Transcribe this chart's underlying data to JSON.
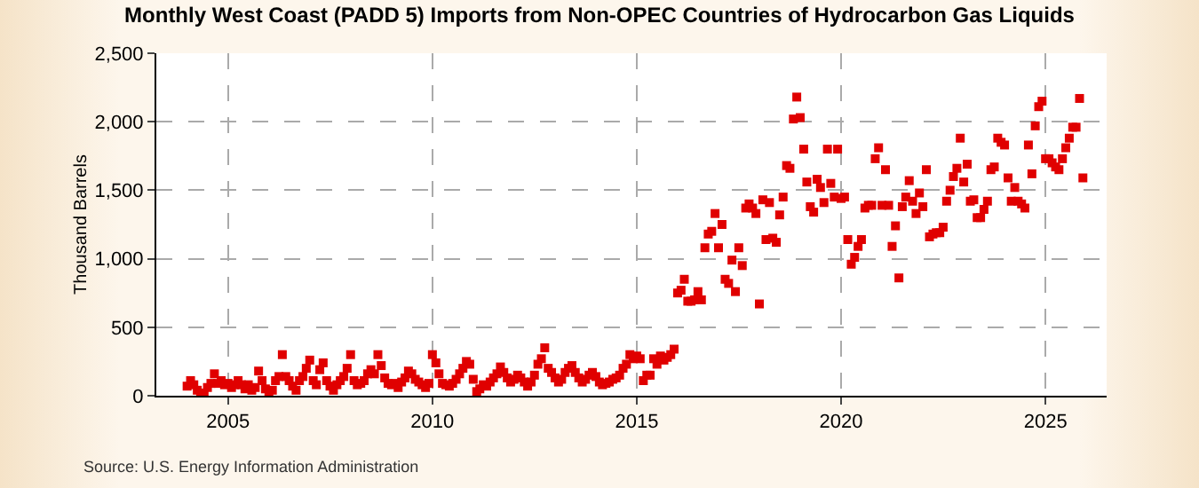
{
  "chart_data": {
    "type": "scatter",
    "title": "Monthly West Coast (PADD 5) Imports from Non-OPEC Countries of Hydrocarbon Gas Liquids",
    "ylabel": "Thousand Barrels",
    "annotations": [
      "Source: U.S. Energy Information Administration"
    ],
    "marker": "square",
    "grid": true,
    "xlim": [
      "2003-04",
      "2026-07"
    ],
    "xticks": [
      "2005",
      "2010",
      "2015",
      "2020",
      "2025"
    ],
    "ylim": [
      0,
      2500
    ],
    "yticks": [
      {
        "value": 0,
        "label": "0"
      },
      {
        "value": 500,
        "label": "500"
      },
      {
        "value": 1000,
        "label": "1,000"
      },
      {
        "value": 1500,
        "label": "1,500"
      },
      {
        "value": 2000,
        "label": "2,000"
      },
      {
        "value": 2500,
        "label": "2,500"
      }
    ],
    "series": [
      {
        "color": "#e00000",
        "x": [
          "2004-01",
          "2004-02",
          "2004-03",
          "2004-04",
          "2004-05",
          "2004-06",
          "2004-07",
          "2004-08",
          "2004-09",
          "2004-10",
          "2004-11",
          "2004-12",
          "2005-01",
          "2005-02",
          "2005-03",
          "2005-04",
          "2005-05",
          "2005-06",
          "2005-07",
          "2005-08",
          "2005-09",
          "2005-10",
          "2005-11",
          "2005-12",
          "2006-01",
          "2006-02",
          "2006-03",
          "2006-04",
          "2006-05",
          "2006-06",
          "2006-07",
          "2006-08",
          "2006-09",
          "2006-10",
          "2006-11",
          "2006-12",
          "2007-01",
          "2007-02",
          "2007-03",
          "2007-04",
          "2007-05",
          "2007-06",
          "2007-07",
          "2007-08",
          "2007-09",
          "2007-10",
          "2007-11",
          "2007-12",
          "2008-01",
          "2008-02",
          "2008-03",
          "2008-04",
          "2008-05",
          "2008-06",
          "2008-07",
          "2008-08",
          "2008-09",
          "2008-10",
          "2008-11",
          "2008-12",
          "2009-01",
          "2009-02",
          "2009-03",
          "2009-04",
          "2009-05",
          "2009-06",
          "2009-07",
          "2009-08",
          "2009-09",
          "2009-10",
          "2009-11",
          "2009-12",
          "2010-01",
          "2010-02",
          "2010-03",
          "2010-04",
          "2010-05",
          "2010-06",
          "2010-07",
          "2010-08",
          "2010-09",
          "2010-10",
          "2010-11",
          "2010-12",
          "2011-01",
          "2011-02",
          "2011-03",
          "2011-04",
          "2011-05",
          "2011-06",
          "2011-07",
          "2011-08",
          "2011-09",
          "2011-10",
          "2011-11",
          "2011-12",
          "2012-01",
          "2012-02",
          "2012-03",
          "2012-04",
          "2012-05",
          "2012-06",
          "2012-07",
          "2012-08",
          "2012-09",
          "2012-10",
          "2012-11",
          "2012-12",
          "2013-01",
          "2013-02",
          "2013-03",
          "2013-04",
          "2013-05",
          "2013-06",
          "2013-07",
          "2013-08",
          "2013-09",
          "2013-10",
          "2013-11",
          "2013-12",
          "2014-01",
          "2014-02",
          "2014-03",
          "2014-04",
          "2014-05",
          "2014-06",
          "2014-07",
          "2014-08",
          "2014-09",
          "2014-10",
          "2014-11",
          "2014-12",
          "2015-01",
          "2015-02",
          "2015-03",
          "2015-04",
          "2015-05",
          "2015-06",
          "2015-07",
          "2015-08",
          "2015-09",
          "2015-10",
          "2015-11",
          "2015-12",
          "2016-01",
          "2016-02",
          "2016-03",
          "2016-04",
          "2016-05",
          "2016-06",
          "2016-07",
          "2016-08",
          "2016-09",
          "2016-10",
          "2016-11",
          "2016-12",
          "2017-01",
          "2017-02",
          "2017-03",
          "2017-04",
          "2017-05",
          "2017-06",
          "2017-07",
          "2017-08",
          "2017-09",
          "2017-10",
          "2017-11",
          "2017-12",
          "2018-01",
          "2018-02",
          "2018-03",
          "2018-04",
          "2018-05",
          "2018-06",
          "2018-07",
          "2018-08",
          "2018-09",
          "2018-10",
          "2018-11",
          "2018-12",
          "2019-01",
          "2019-02",
          "2019-03",
          "2019-04",
          "2019-05",
          "2019-06",
          "2019-07",
          "2019-08",
          "2019-09",
          "2019-10",
          "2019-11",
          "2019-12",
          "2020-01",
          "2020-02",
          "2020-03",
          "2020-04",
          "2020-05",
          "2020-06",
          "2020-07",
          "2020-08",
          "2020-09",
          "2020-10",
          "2020-11",
          "2020-12",
          "2021-01",
          "2021-02",
          "2021-03",
          "2021-04",
          "2021-05",
          "2021-06",
          "2021-07",
          "2021-08",
          "2021-09",
          "2021-10",
          "2021-11",
          "2021-12",
          "2022-01",
          "2022-02",
          "2022-03",
          "2022-04",
          "2022-05",
          "2022-06",
          "2022-07",
          "2022-08",
          "2022-09",
          "2022-10",
          "2022-11",
          "2022-12",
          "2023-01",
          "2023-02",
          "2023-03",
          "2023-04",
          "2023-05",
          "2023-06",
          "2023-07",
          "2023-08",
          "2023-09",
          "2023-10",
          "2023-11",
          "2023-12",
          "2024-01",
          "2024-02",
          "2024-03",
          "2024-04",
          "2024-05",
          "2024-06",
          "2024-07",
          "2024-08",
          "2024-09",
          "2024-10",
          "2024-11",
          "2024-12",
          "2025-01",
          "2025-02",
          "2025-03",
          "2025-04",
          "2025-05",
          "2025-06",
          "2025-07",
          "2025-08",
          "2025-09",
          "2025-10",
          "2025-11",
          "2025-12"
        ],
        "values": [
          70,
          110,
          80,
          40,
          0,
          20,
          60,
          90,
          160,
          90,
          110,
          80,
          90,
          60,
          80,
          110,
          80,
          50,
          80,
          40,
          60,
          180,
          110,
          50,
          30,
          40,
          110,
          140,
          300,
          140,
          110,
          70,
          40,
          110,
          140,
          200,
          260,
          110,
          80,
          190,
          240,
          110,
          70,
          40,
          80,
          110,
          140,
          200,
          300,
          110,
          80,
          90,
          110,
          160,
          190,
          160,
          300,
          220,
          130,
          90,
          80,
          90,
          60,
          100,
          130,
          180,
          160,
          120,
          100,
          80,
          60,
          90,
          300,
          240,
          160,
          90,
          80,
          70,
          90,
          120,
          160,
          200,
          250,
          230,
          120,
          30,
          50,
          80,
          70,
          100,
          130,
          160,
          210,
          170,
          130,
          100,
          120,
          150,
          130,
          100,
          70,
          100,
          150,
          230,
          270,
          350,
          200,
          170,
          130,
          100,
          120,
          170,
          200,
          220,
          170,
          130,
          100,
          120,
          150,
          170,
          140,
          100,
          80,
          90,
          100,
          120,
          130,
          150,
          200,
          230,
          300,
          270,
          290,
          270,
          110,
          150,
          150,
          270,
          230,
          290,
          260,
          280,
          300,
          340,
          750,
          770,
          850,
          690,
          690,
          700,
          760,
          700,
          1080,
          1180,
          1200,
          1330,
          1080,
          1250,
          850,
          820,
          990,
          760,
          1080,
          950,
          1370,
          1400,
          1370,
          1330,
          670,
          1430,
          1140,
          1410,
          1150,
          1120,
          1320,
          1450,
          1680,
          1660,
          2020,
          2180,
          2030,
          1800,
          1560,
          1380,
          1340,
          1580,
          1520,
          1410,
          1800,
          1550,
          1450,
          1800,
          1440,
          1450,
          1140,
          960,
          1010,
          1090,
          1140,
          1370,
          1390,
          1390,
          1730,
          1810,
          1390,
          1650,
          1390,
          1090,
          1240,
          860,
          1380,
          1450,
          1570,
          1420,
          1330,
          1480,
          1380,
          1650,
          1160,
          1180,
          1190,
          1190,
          1230,
          1420,
          1500,
          1600,
          1660,
          1880,
          1560,
          1690,
          1420,
          1430,
          1300,
          1300,
          1360,
          1420,
          1650,
          1670,
          1880,
          1850,
          1830,
          1590,
          1420,
          1520,
          1420,
          1400,
          1370,
          1830,
          1620,
          1970,
          2110,
          2150,
          1730,
          1730,
          1700,
          1670,
          1650,
          1730,
          1810,
          1880,
          1960,
          1960,
          2170,
          1590
        ]
      }
    ]
  }
}
